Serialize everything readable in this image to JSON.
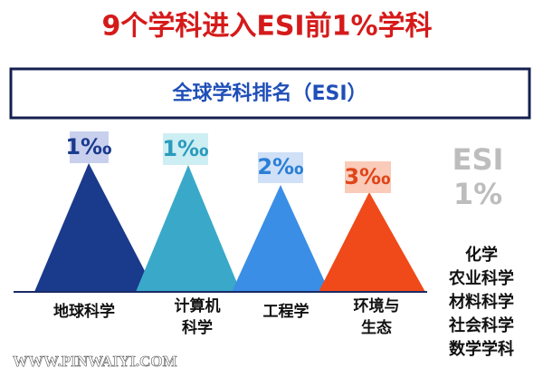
{
  "title": "9个学科进入ESI前1%学科",
  "banner": "全球学科排名（ESI）",
  "subjects": [
    {
      "rank": "1‰",
      "lines": [
        "地球科学"
      ]
    },
    {
      "rank": "1‰",
      "lines": [
        "计算机",
        "科学"
      ]
    },
    {
      "rank": "2‰",
      "lines": [
        "工程学"
      ]
    },
    {
      "rank": "3‰",
      "lines": [
        "环境与",
        "生态"
      ]
    }
  ],
  "side": {
    "label": "ESI",
    "value": "1%",
    "list": [
      "化学",
      "农业科学",
      "材料科学",
      "社会科学",
      "数学学科"
    ]
  },
  "watermark": "WWW.PINWAIYI.COM"
}
